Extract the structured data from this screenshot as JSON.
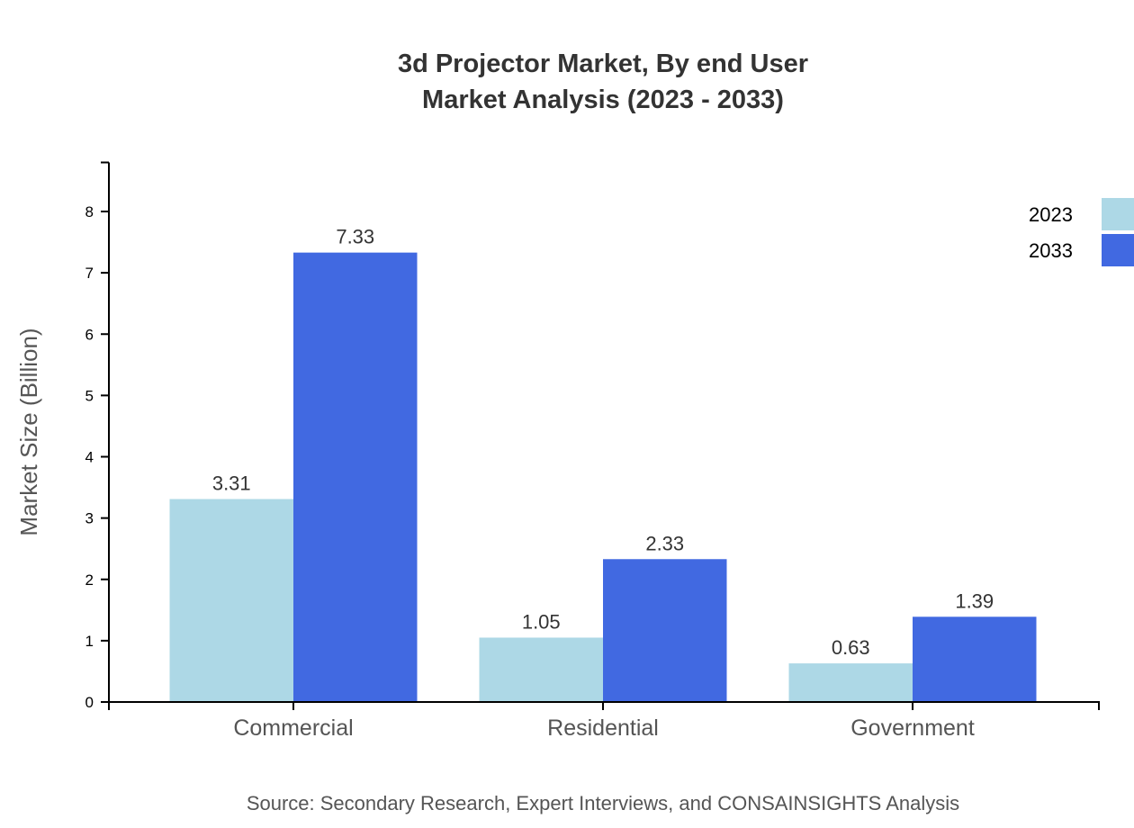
{
  "chart_data": {
    "type": "bar",
    "title": [
      "3d Projector Market, By end User",
      "Market Analysis (2023 - 2033)"
    ],
    "ylabel": "Market Size (Billion)",
    "xlabel": "",
    "categories": [
      "Commercial",
      "Residential",
      "Government"
    ],
    "series": [
      {
        "name": "2023",
        "color": "#add8e6",
        "values": [
          3.31,
          1.05,
          0.63
        ]
      },
      {
        "name": "2033",
        "color": "#4169e1",
        "values": [
          7.33,
          2.33,
          1.39
        ]
      }
    ],
    "yticks": [
      "0",
      "1",
      "2",
      "3",
      "4",
      "5",
      "6",
      "7",
      "8"
    ],
    "ylim": [
      0,
      8.8
    ],
    "grid": false,
    "legend_position": "top-right",
    "source": "Source: Secondary Research, Expert Interviews, and CONSAINSIGHTS Analysis"
  }
}
